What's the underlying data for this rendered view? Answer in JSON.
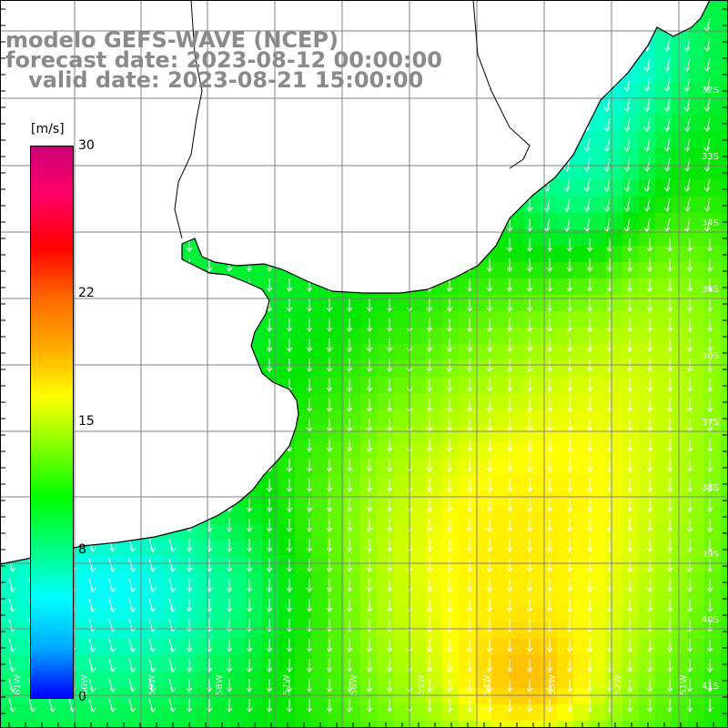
{
  "title": {
    "line1": "modelo GEFS-WAVE (NCEP)",
    "line2": "forecast date: 2023-08-12 00:00:00",
    "line3": "   valid date: 2023-08-21 15:00:00"
  },
  "colorbar": {
    "unit": "[m/s]",
    "ticks": [
      "30",
      "22",
      "15",
      "8",
      "0"
    ],
    "tick_values": [
      30,
      22,
      15,
      8,
      0
    ],
    "colors": [
      "#0000ff",
      "#00aaff",
      "#00ffff",
      "#00ff80",
      "#00ff00",
      "#80ff00",
      "#ffff00",
      "#ffaa00",
      "#ff6600",
      "#ff0000",
      "#ff0066",
      "#cc0077"
    ]
  },
  "latitude_labels": [
    "32S",
    "33S",
    "34S",
    "35S",
    "36S",
    "37S",
    "38S",
    "39S",
    "40S",
    "41S"
  ],
  "longitude_labels": [
    "61W",
    "60W",
    "59W",
    "58W",
    "57W",
    "56W",
    "55W",
    "54W",
    "53W",
    "52W",
    "51W"
  ],
  "map": {
    "land_color": "#ffffff",
    "coast_color": "#000000",
    "grid_color": "#808080",
    "arrow_color": "#ffffff"
  }
}
